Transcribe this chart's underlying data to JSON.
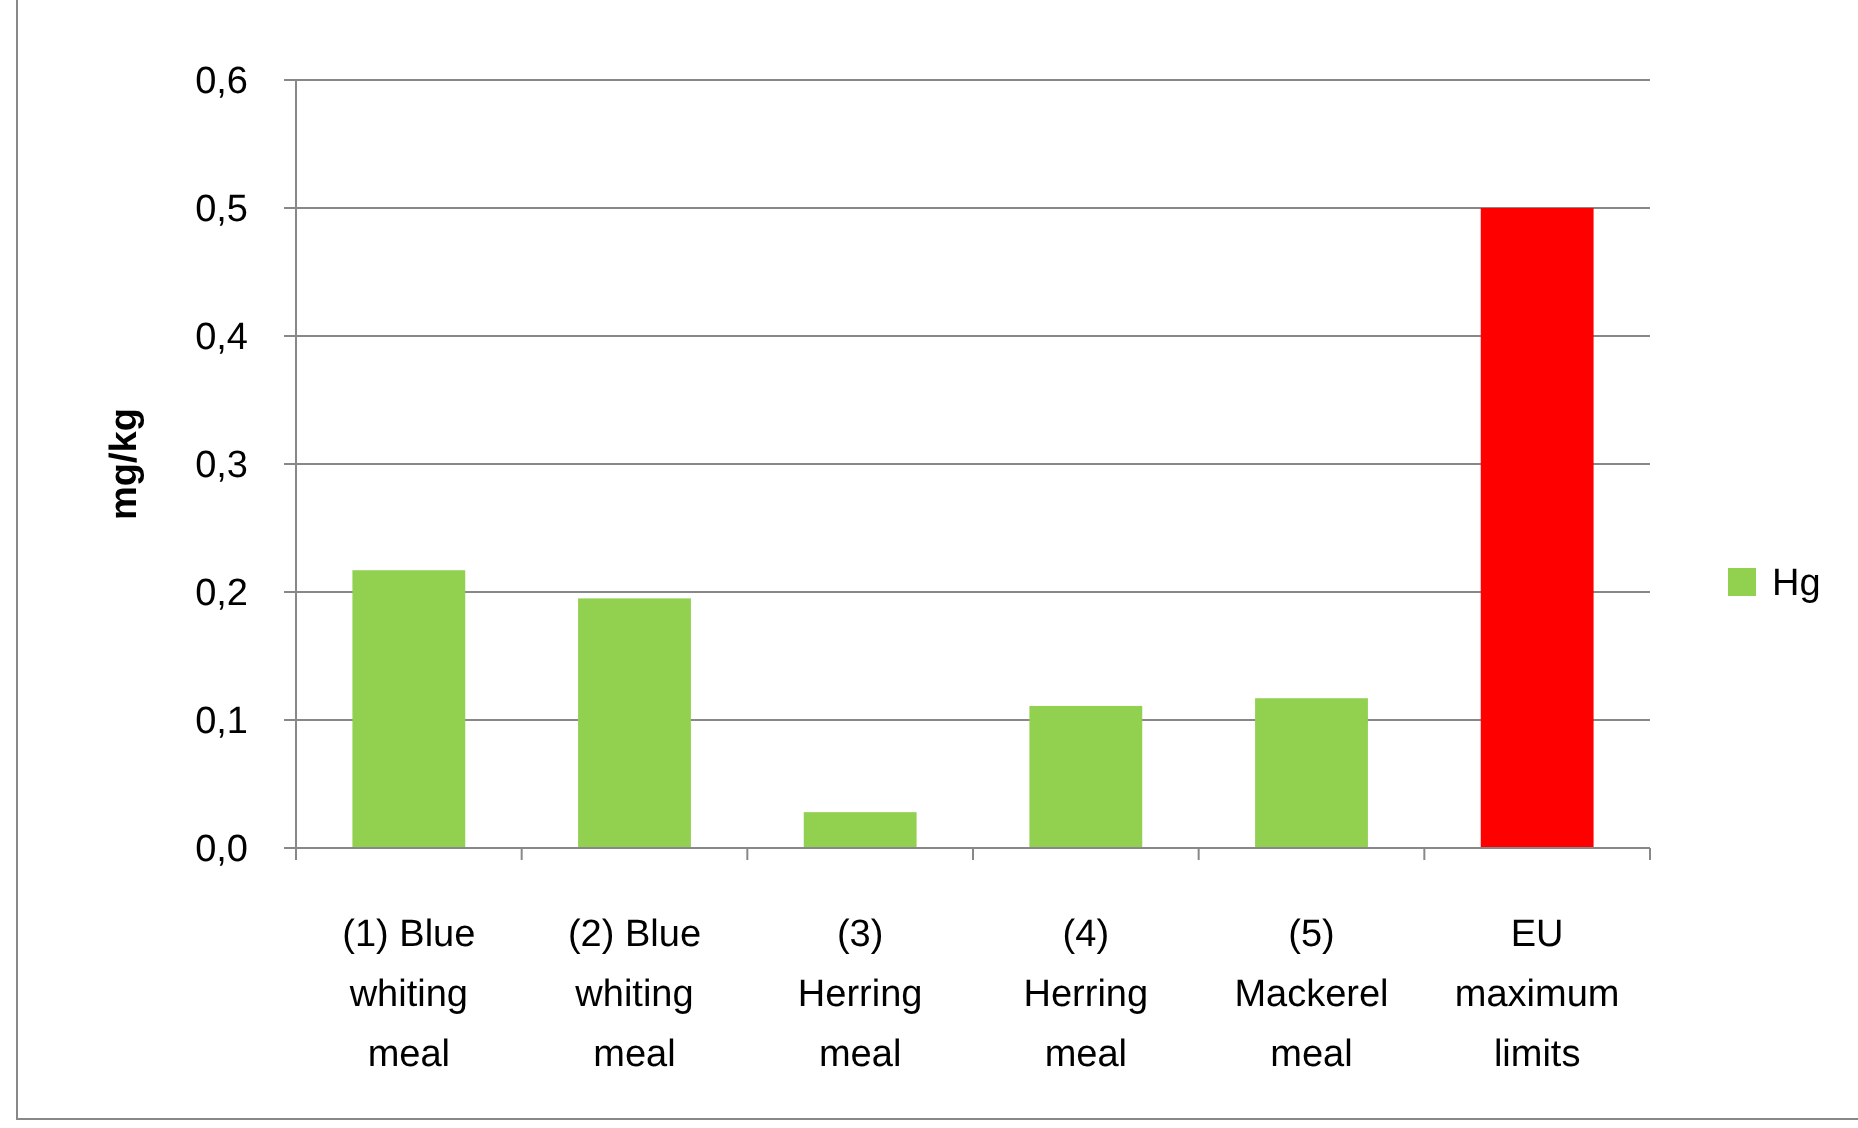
{
  "chart_data": {
    "type": "bar",
    "ylabel": "mg/kg",
    "categories": [
      "(1) Blue whiting meal",
      "(2) Blue whiting meal",
      "(3) Herring meal",
      "(4) Herring meal",
      "(5) Mackerel meal",
      "EU maximum limits"
    ],
    "series": [
      {
        "name": "Hg",
        "color": "#92d050",
        "values": [
          0.217,
          0.195,
          0.028,
          0.111,
          0.117,
          0.5
        ],
        "colors": [
          "#92d050",
          "#92d050",
          "#92d050",
          "#92d050",
          "#92d050",
          "#ff0000"
        ]
      }
    ],
    "ylim": [
      0,
      0.6
    ],
    "yticks": [
      {
        "value": 0,
        "label": "0,0"
      },
      {
        "value": 0.1,
        "label": "0,1"
      },
      {
        "value": 0.2,
        "label": "0,2"
      },
      {
        "value": 0.3,
        "label": "0,3"
      },
      {
        "value": 0.4,
        "label": "0,4"
      },
      {
        "value": 0.5,
        "label": "0,5"
      },
      {
        "value": 0.6,
        "label": "0,6"
      }
    ],
    "grid": "y",
    "legend": "right"
  }
}
